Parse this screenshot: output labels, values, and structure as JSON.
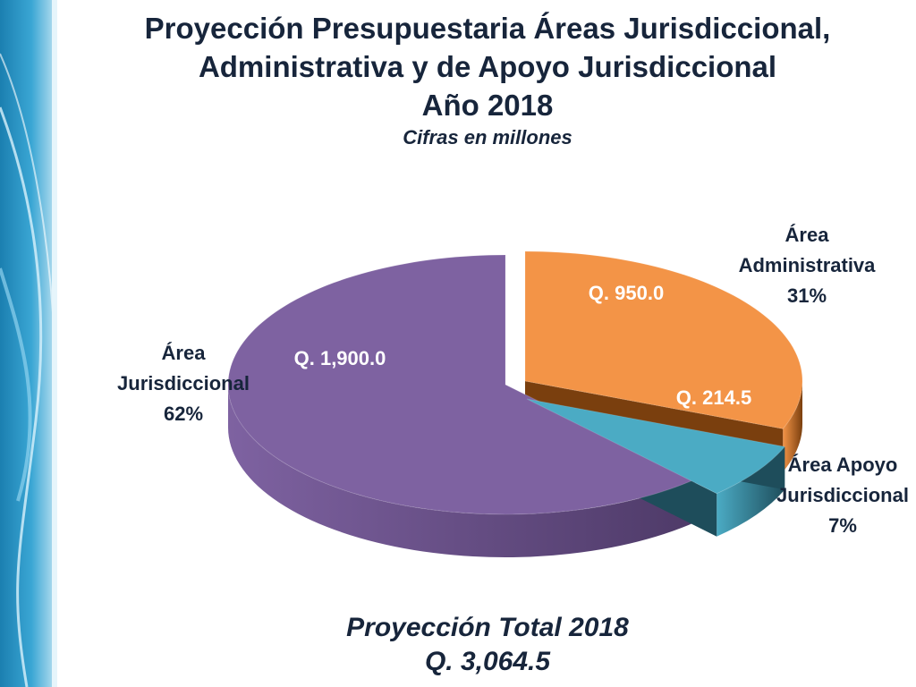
{
  "chart_data": {
    "type": "pie",
    "title_lines": [
      "Proyección Presupuestaria Áreas Jurisdiccional,",
      "Administrativa y de Apoyo Jurisdiccional",
      "Año 2018"
    ],
    "subtitle": "Cifras en millones",
    "slices": [
      {
        "label_lines": [
          "Área",
          "Jurisdiccional"
        ],
        "percent": "62%",
        "value": 1900.0,
        "value_label": "Q. 1,900.0",
        "color": "#7e62a1",
        "side_color": "#4e3a68",
        "text_color": "#ffffff"
      },
      {
        "label_lines": [
          "Área",
          "Administrativa"
        ],
        "percent": "31%",
        "value": 950.0,
        "value_label": "Q. 950.0",
        "color": "#f39447",
        "side_color": "#7a3f0e",
        "text_color": "#ffffff"
      },
      {
        "label_lines": [
          "Área Apoyo",
          "Jurisdiccional"
        ],
        "percent": "7%",
        "value": 214.5,
        "value_label": "Q. 214.5",
        "color": "#4babc4",
        "side_color": "#1e4d5b",
        "text_color": "#ffffff"
      }
    ]
  },
  "footer": {
    "line1": "Proyección Total 2018",
    "line2": "Q. 3,064.5"
  }
}
